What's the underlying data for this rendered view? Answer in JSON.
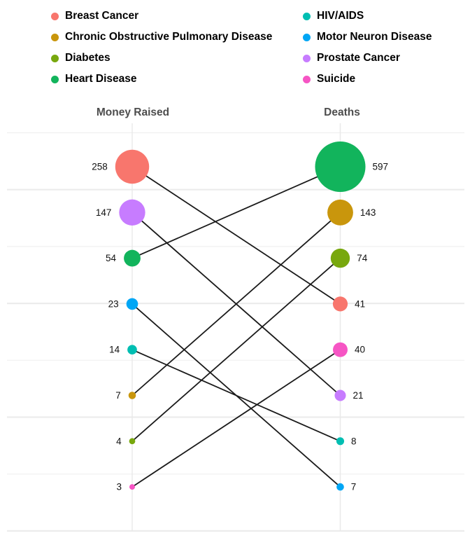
{
  "legend": {
    "columns": [
      [
        "Breast Cancer",
        "Chronic Obstructive Pulmonary Disease",
        "Diabetes",
        "Heart Disease"
      ],
      [
        "HIV/AIDS",
        "Motor Neuron Disease",
        "Prostate Cancer",
        "Suicide"
      ]
    ]
  },
  "chart_data": {
    "type": "scatter",
    "variant": "slopegraph-with-sized-bubbles",
    "columns": [
      "Money Raised",
      "Deaths"
    ],
    "series": [
      {
        "name": "Breast Cancer",
        "color": "#F8766D",
        "money_raised": 258,
        "deaths": 41
      },
      {
        "name": "Chronic Obstructive Pulmonary Disease",
        "color": "#C9960C",
        "money_raised": 7,
        "deaths": 143
      },
      {
        "name": "Diabetes",
        "color": "#78A80E",
        "money_raised": 4,
        "deaths": 74
      },
      {
        "name": "Heart Disease",
        "color": "#12B45C",
        "money_raised": 54,
        "deaths": 597
      },
      {
        "name": "HIV/AIDS",
        "color": "#00BEB2",
        "money_raised": 14,
        "deaths": 8
      },
      {
        "name": "Motor Neuron Disease",
        "color": "#00A6F5",
        "money_raised": 23,
        "deaths": 7
      },
      {
        "name": "Prostate Cancer",
        "color": "#C77CFF",
        "money_raised": 147,
        "deaths": 21
      },
      {
        "name": "Suicide",
        "color": "#F655C4",
        "money_raised": 3,
        "deaths": 40
      }
    ],
    "layout_hints": {
      "ordering": "each column sorted descending by its value (rank positions evenly spaced)",
      "size_encoding": "bubble radius ~ sqrt(value)",
      "connector_lines": "black line joins the same disease in both columns",
      "grid": "light horizontal gridlines; one light vertical gridline per column",
      "value_labels": "left column labeled to the left of bubbles, right column to the right",
      "line_color": "#1a1a1a",
      "grid_color": "#ececec",
      "header_color": "#4d4d4d"
    }
  }
}
